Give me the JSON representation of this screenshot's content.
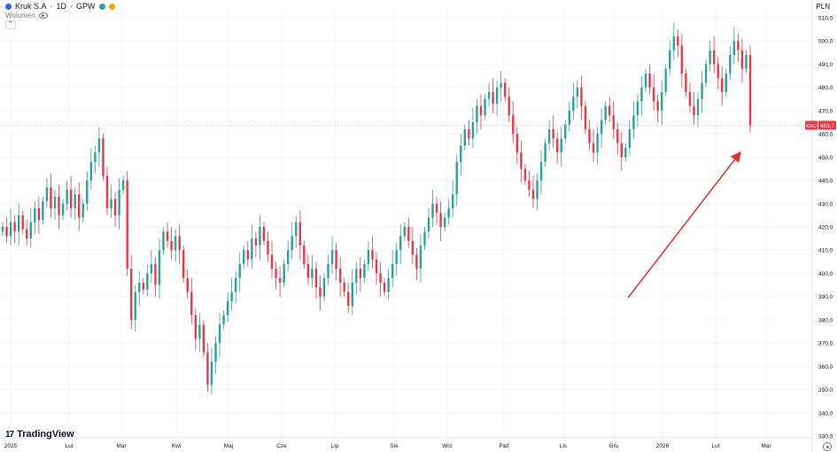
{
  "header": {
    "symbol": "Kruk S.A",
    "interval": "1D",
    "exchange": "GPW",
    "title_sep": "·",
    "status_colors": [
      "#26a69a",
      "#f7a600"
    ],
    "volume_label": "Wolumen",
    "currency": "PLN"
  },
  "price_tag": {
    "label": "KRU",
    "value": "463,7",
    "color": "#f23645"
  },
  "branding": {
    "name": "TradingView"
  },
  "chart_data": {
    "type": "candlestick",
    "x_axis_labels": [
      "2025",
      "Lut",
      "Mar",
      "Kwi",
      "Maj",
      "Cze",
      "Lip",
      "Sie",
      "Wrz",
      "Paź",
      "Lis",
      "Gru",
      "2026",
      "Lut",
      "Mar"
    ],
    "y_ticks": [
      "330,0",
      "340,0",
      "350,0",
      "360,0",
      "370,0",
      "380,0",
      "390,0",
      "400,0",
      "410,0",
      "420,0",
      "430,0",
      "440,0",
      "450,0",
      "460,0",
      "470,0",
      "480,0",
      "490,0",
      "500,0",
      "510,0"
    ],
    "ylim": [
      330,
      510
    ],
    "last_price": 463.7,
    "up_color": "#26a69a",
    "down_color": "#f23645",
    "arrow_color": "#e03131",
    "closes": [
      420,
      416,
      422,
      418,
      425,
      419,
      415,
      422,
      428,
      423,
      431,
      437,
      428,
      433,
      425,
      430,
      436,
      428,
      434,
      424,
      430,
      440,
      448,
      452,
      458,
      442,
      428,
      432,
      425,
      436,
      440,
      402,
      380,
      392,
      396,
      393,
      400,
      404,
      395,
      410,
      418,
      414,
      410,
      416,
      410,
      398,
      392,
      382,
      372,
      378,
      366,
      352,
      362,
      370,
      378,
      382,
      388,
      392,
      398,
      404,
      410,
      406,
      415,
      412,
      420,
      414,
      408,
      402,
      398,
      396,
      404,
      410,
      416,
      422,
      412,
      404,
      398,
      402,
      394,
      390,
      398,
      404,
      410,
      402,
      396,
      392,
      386,
      396,
      402,
      398,
      404,
      410,
      406,
      400,
      396,
      392,
      398,
      404,
      410,
      416,
      420,
      414,
      408,
      402,
      412,
      418,
      424,
      430,
      426,
      420,
      424,
      428,
      434,
      448,
      455,
      462,
      458,
      465,
      472,
      468,
      475,
      478,
      473,
      480,
      482,
      476,
      468,
      460,
      452,
      445,
      440,
      436,
      432,
      440,
      448,
      456,
      462,
      458,
      452,
      458,
      464,
      470,
      476,
      480,
      472,
      462,
      456,
      452,
      460,
      466,
      472,
      468,
      462,
      456,
      450,
      454,
      462,
      468,
      474,
      480,
      486,
      480,
      474,
      470,
      478,
      488,
      496,
      502,
      498,
      486,
      478,
      472,
      468,
      475,
      482,
      490,
      496,
      490,
      484,
      478,
      486,
      494,
      500,
      496,
      488,
      494,
      463.7
    ]
  }
}
